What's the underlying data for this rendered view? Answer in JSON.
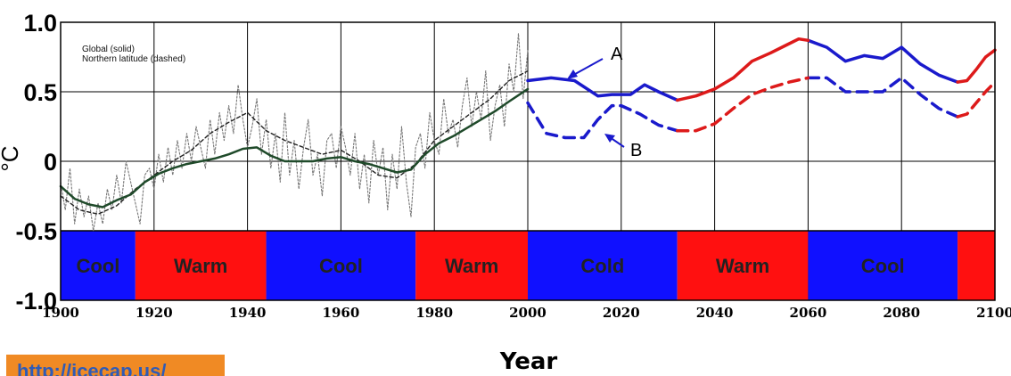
{
  "chart_data": {
    "type": "line",
    "xlabel": "Year",
    "ylabel": "°C",
    "xlim": [
      1900,
      2100
    ],
    "ylim": [
      -1.0,
      1.0
    ],
    "x_ticks": [
      1900,
      1920,
      1940,
      1960,
      1980,
      2000,
      2020,
      2040,
      2060,
      2080,
      2100
    ],
    "y_ticks": [
      1.0,
      0.5,
      0,
      -0.5,
      -1.0
    ],
    "y_tick_labels": [
      "1.0",
      "0.5",
      "0",
      "-0.5",
      "-1.0"
    ],
    "x_tick_labels": [
      "1900",
      "1920",
      "1940",
      "1960",
      "1980",
      "2000",
      "2020",
      "2040",
      "2060",
      "2080",
      "2100"
    ],
    "grid": true,
    "legend": {
      "position": "top-left",
      "entries": [
        "Global (solid)",
        "Northern latitude (dashed)"
      ]
    },
    "annotations": [
      {
        "text": "A",
        "x": 2013,
        "y": 0.78
      },
      {
        "text": "B",
        "x": 2016,
        "y": 0.12
      }
    ],
    "bands": [
      {
        "label": "Cool",
        "start": 1900,
        "end": 1916,
        "color": "#1010ff"
      },
      {
        "label": "Warm",
        "start": 1916,
        "end": 1944,
        "color": "#ff1010"
      },
      {
        "label": "Cool",
        "start": 1944,
        "end": 1976,
        "color": "#1010ff"
      },
      {
        "label": "Warm",
        "start": 1976,
        "end": 2000,
        "color": "#ff1010"
      },
      {
        "label": "Cold",
        "start": 2000,
        "end": 2032,
        "color": "#1010ff"
      },
      {
        "label": "Warm",
        "start": 2032,
        "end": 2060,
        "color": "#ff1010"
      },
      {
        "label": "Cool",
        "start": 2060,
        "end": 2092,
        "color": "#1010ff"
      },
      {
        "label": "",
        "start": 2092,
        "end": 2100,
        "color": "#ff1010"
      }
    ],
    "series": [
      {
        "style": "solid-dark-green",
        "color": "#1f4a2a",
        "x": [
          1900,
          1903,
          1906,
          1909,
          1912,
          1915,
          1918,
          1921,
          1924,
          1927,
          1930,
          1933,
          1936,
          1939,
          1942,
          1945,
          1948,
          1951,
          1954,
          1957,
          1960,
          1963,
          1966,
          1969,
          1972,
          1975,
          1978,
          1981,
          1984,
          1987,
          1990,
          1993,
          1996,
          2000
        ],
        "y": [
          -0.18,
          -0.27,
          -0.31,
          -0.33,
          -0.28,
          -0.24,
          -0.15,
          -0.09,
          -0.05,
          -0.02,
          0.0,
          0.02,
          0.05,
          0.09,
          0.1,
          0.04,
          0.0,
          0.0,
          0.0,
          0.02,
          0.03,
          0.0,
          -0.02,
          -0.05,
          -0.08,
          -0.06,
          0.05,
          0.13,
          0.18,
          0.24,
          0.3,
          0.36,
          0.43,
          0.52
        ]
      },
      {
        "style": "dotted-gray-raw",
        "color": "#777777",
        "x": [
          1900,
          1901,
          1902,
          1903,
          1904,
          1905,
          1906,
          1907,
          1908,
          1909,
          1910,
          1911,
          1912,
          1913,
          1914,
          1915,
          1916,
          1917,
          1918,
          1919,
          1920,
          1921,
          1922,
          1923,
          1924,
          1925,
          1926,
          1927,
          1928,
          1929,
          1930,
          1931,
          1932,
          1933,
          1934,
          1935,
          1936,
          1937,
          1938,
          1939,
          1940,
          1941,
          1942,
          1943,
          1944,
          1945,
          1946,
          1947,
          1948,
          1949,
          1950,
          1951,
          1952,
          1953,
          1954,
          1955,
          1956,
          1957,
          1958,
          1959,
          1960,
          1961,
          1962,
          1963,
          1964,
          1965,
          1966,
          1967,
          1968,
          1969,
          1970,
          1971,
          1972,
          1973,
          1974,
          1975,
          1976,
          1977,
          1978,
          1979,
          1980,
          1981,
          1982,
          1983,
          1984,
          1985,
          1986,
          1987,
          1988,
          1989,
          1990,
          1991,
          1992,
          1993,
          1994,
          1995,
          1996,
          1997,
          1998,
          1999,
          2000
        ],
        "y": [
          -0.15,
          -0.35,
          -0.05,
          -0.45,
          -0.2,
          -0.4,
          -0.25,
          -0.5,
          -0.3,
          -0.45,
          -0.2,
          -0.35,
          -0.1,
          -0.3,
          0.0,
          -0.15,
          -0.3,
          -0.45,
          -0.1,
          -0.05,
          -0.2,
          0.05,
          -0.15,
          0.1,
          -0.1,
          0.15,
          -0.05,
          0.2,
          0.0,
          0.25,
          0.1,
          -0.05,
          0.3,
          0.05,
          0.35,
          0.15,
          0.4,
          0.2,
          0.55,
          0.3,
          0.1,
          0.25,
          0.45,
          0.05,
          0.3,
          -0.05,
          0.2,
          -0.15,
          0.35,
          -0.1,
          0.15,
          -0.2,
          0.1,
          0.3,
          -0.1,
          0.05,
          -0.25,
          0.15,
          0.2,
          -0.05,
          0.25,
          0.1,
          -0.1,
          0.2,
          -0.2,
          0.05,
          -0.3,
          0.15,
          -0.1,
          0.1,
          -0.35,
          0.05,
          -0.2,
          0.25,
          -0.15,
          -0.4,
          0.1,
          0.2,
          -0.05,
          0.35,
          0.15,
          0.05,
          0.45,
          0.2,
          0.3,
          0.1,
          0.4,
          0.6,
          0.25,
          0.5,
          0.3,
          0.65,
          0.15,
          0.4,
          0.55,
          0.25,
          0.7,
          0.5,
          0.92,
          0.45,
          0.8
        ]
      },
      {
        "style": "dashed-black-northern",
        "color": "#222222",
        "x": [
          1900,
          1904,
          1908,
          1912,
          1916,
          1920,
          1924,
          1928,
          1932,
          1936,
          1940,
          1944,
          1948,
          1952,
          1956,
          1960,
          1964,
          1968,
          1972,
          1976,
          1980,
          1984,
          1988,
          1992,
          1996,
          2000
        ],
        "y": [
          -0.25,
          -0.35,
          -0.38,
          -0.32,
          -0.2,
          -0.1,
          0.0,
          0.08,
          0.2,
          0.28,
          0.35,
          0.22,
          0.15,
          0.1,
          0.05,
          0.08,
          0.0,
          -0.1,
          -0.12,
          -0.02,
          0.15,
          0.25,
          0.35,
          0.45,
          0.58,
          0.65
        ]
      },
      {
        "style": "solid-blue-A",
        "color": "#1a1acc",
        "x": [
          2000,
          2005,
          2010,
          2015,
          2018,
          2022,
          2025,
          2028,
          2032
        ],
        "y": [
          0.58,
          0.6,
          0.58,
          0.47,
          0.48,
          0.48,
          0.55,
          0.5,
          0.44
        ]
      },
      {
        "style": "solid-red-A",
        "color": "#dd1a1a",
        "x": [
          2032,
          2036,
          2040,
          2044,
          2048,
          2052,
          2055,
          2058,
          2060
        ],
        "y": [
          0.44,
          0.47,
          0.52,
          0.6,
          0.72,
          0.78,
          0.83,
          0.88,
          0.87
        ]
      },
      {
        "style": "solid-blue-A",
        "color": "#1a1acc",
        "x": [
          2060,
          2064,
          2068,
          2072,
          2076,
          2080,
          2084,
          2088,
          2092
        ],
        "y": [
          0.87,
          0.82,
          0.72,
          0.76,
          0.74,
          0.82,
          0.7,
          0.62,
          0.57
        ]
      },
      {
        "style": "solid-red-A",
        "color": "#dd1a1a",
        "x": [
          2092,
          2094,
          2096,
          2098,
          2100
        ],
        "y": [
          0.57,
          0.58,
          0.66,
          0.75,
          0.8
        ]
      },
      {
        "style": "dashed-blue-B",
        "color": "#1a1acc",
        "x": [
          2000,
          2004,
          2008,
          2012,
          2015,
          2018,
          2020,
          2024,
          2028,
          2032
        ],
        "y": [
          0.42,
          0.2,
          0.17,
          0.17,
          0.3,
          0.4,
          0.4,
          0.34,
          0.26,
          0.22
        ]
      },
      {
        "style": "dashed-red-B",
        "color": "#dd1a1a",
        "x": [
          2032,
          2036,
          2040,
          2044,
          2048,
          2052,
          2056,
          2060
        ],
        "y": [
          0.22,
          0.22,
          0.27,
          0.38,
          0.48,
          0.53,
          0.57,
          0.6
        ]
      },
      {
        "style": "dashed-blue-B",
        "color": "#1a1acc",
        "x": [
          2060,
          2064,
          2068,
          2072,
          2076,
          2080,
          2084,
          2088,
          2092
        ],
        "y": [
          0.6,
          0.6,
          0.5,
          0.5,
          0.5,
          0.6,
          0.48,
          0.38,
          0.32
        ]
      },
      {
        "style": "dashed-red-B",
        "color": "#dd1a1a",
        "x": [
          2092,
          2094,
          2096,
          2098,
          2100
        ],
        "y": [
          0.32,
          0.34,
          0.42,
          0.5,
          0.57
        ]
      }
    ]
  },
  "watermark": {
    "url_text": "http://icecap.us/"
  }
}
